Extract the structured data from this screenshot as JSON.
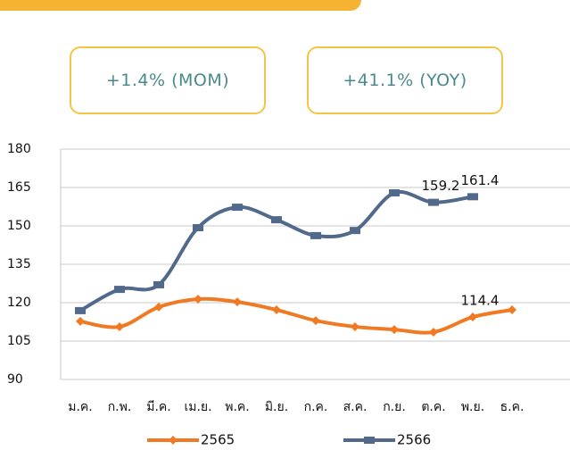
{
  "stats": [
    "+1.4% (MOM)",
    "+41.1% (YOY)"
  ],
  "chart_data": {
    "type": "line",
    "categories": [
      "ม.ค.",
      "ก.พ.",
      "มี.ค.",
      "เม.ย.",
      "พ.ค.",
      "มิ.ย.",
      "ก.ค.",
      "ส.ค.",
      "ก.ย.",
      "ต.ค.",
      "พ.ย.",
      "ธ.ค."
    ],
    "series": [
      {
        "name": "2565",
        "color": "#f07a23",
        "marker": "diamond",
        "values": [
          112.7,
          110.6,
          118.3,
          121.4,
          120.3,
          117.2,
          113,
          110.6,
          109.5,
          108.5,
          114.4,
          117.2
        ],
        "value_labels": [
          null,
          null,
          null,
          null,
          null,
          null,
          null,
          null,
          null,
          null,
          "114.4",
          null
        ]
      },
      {
        "name": "2566",
        "color": "#51698a",
        "marker": "square",
        "values": [
          116.9,
          125.2,
          127,
          149.3,
          157.3,
          152.4,
          146.2,
          148.2,
          162.9,
          159.2,
          161.4,
          null
        ],
        "value_labels": [
          null,
          null,
          null,
          null,
          null,
          null,
          null,
          null,
          null,
          "159.2",
          "161.4",
          null
        ]
      }
    ],
    "ylim": [
      90,
      180
    ],
    "yticks": [
      90,
      105,
      120,
      135,
      150,
      165,
      180
    ],
    "grid": true,
    "legend": "bottom"
  }
}
